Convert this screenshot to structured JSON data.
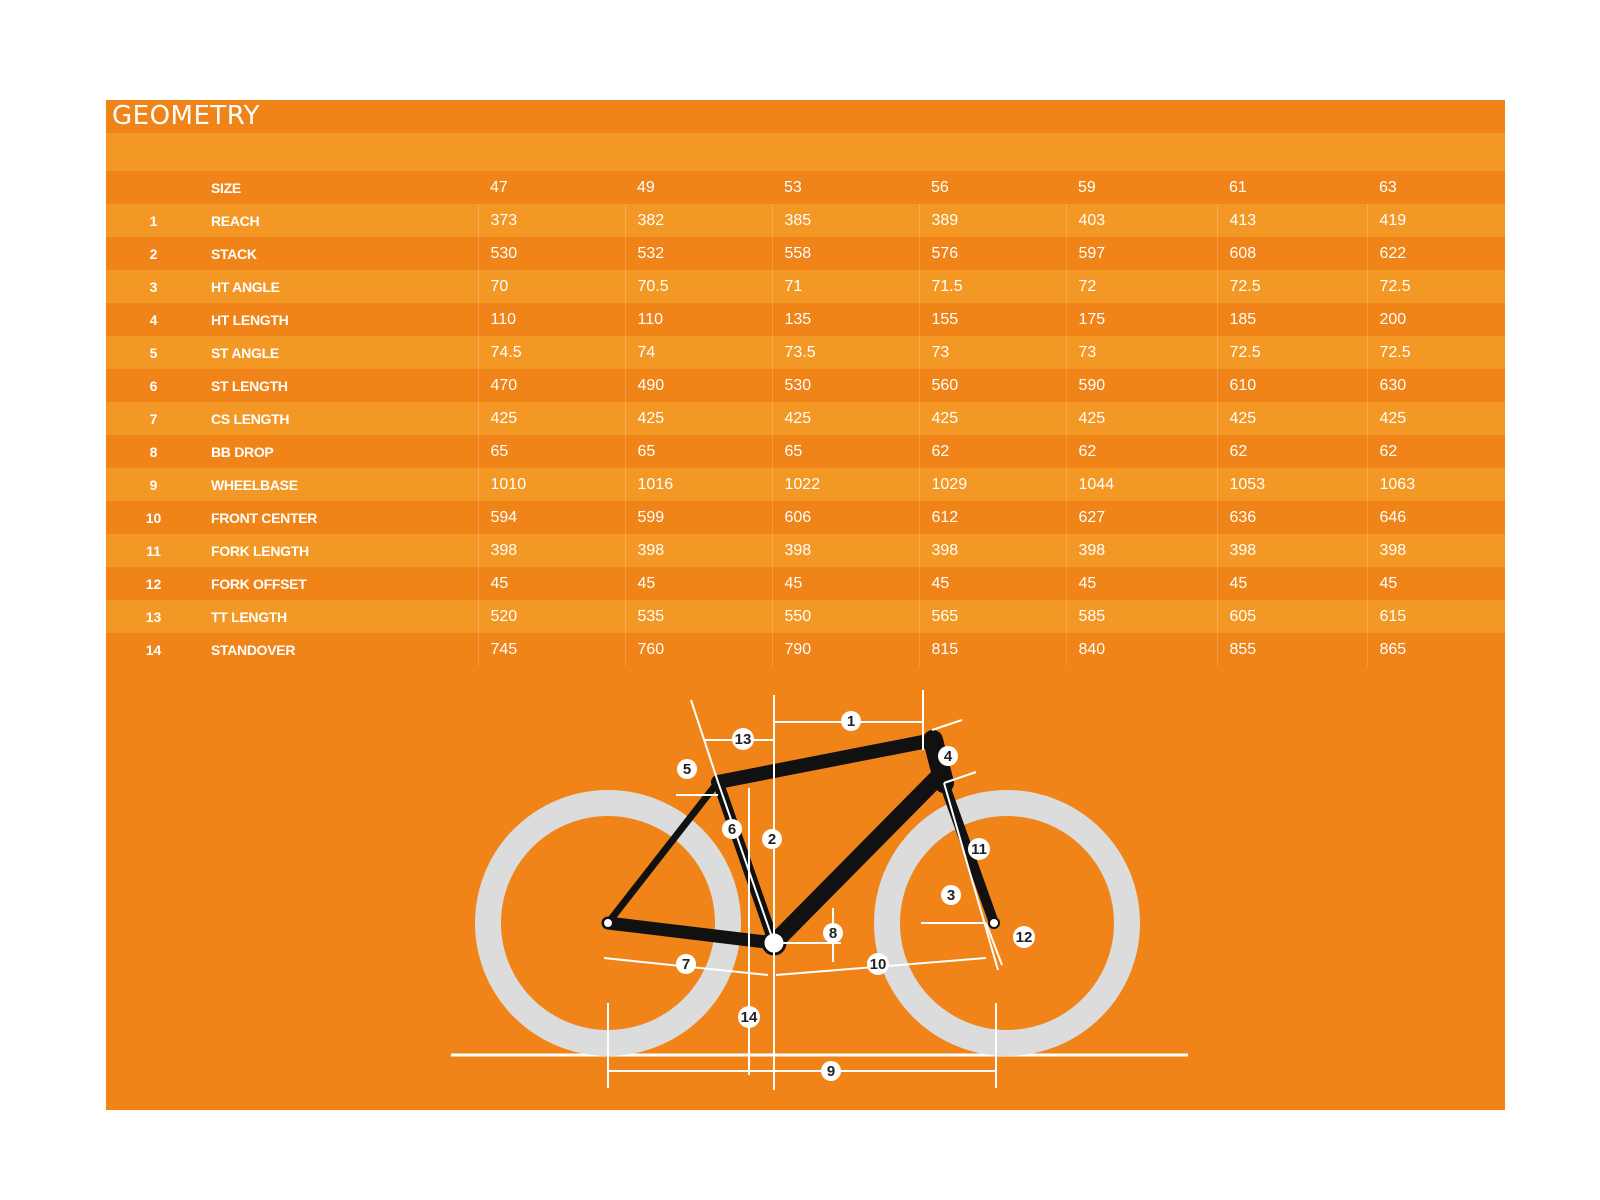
{
  "title": "GEOMETRY",
  "sizes_label": "SIZE",
  "sizes": [
    "47",
    "49",
    "53",
    "56",
    "59",
    "61",
    "63"
  ],
  "rows": [
    {
      "num": "1",
      "label": "REACH",
      "values": [
        "373",
        "382",
        "385",
        "389",
        "403",
        "413",
        "419"
      ]
    },
    {
      "num": "2",
      "label": "STACK",
      "values": [
        "530",
        "532",
        "558",
        "576",
        "597",
        "608",
        "622"
      ]
    },
    {
      "num": "3",
      "label": "HT ANGLE",
      "values": [
        "70",
        "70.5",
        "71",
        "71.5",
        "72",
        "72.5",
        "72.5"
      ]
    },
    {
      "num": "4",
      "label": "HT LENGTH",
      "values": [
        "110",
        "110",
        "135",
        "155",
        "175",
        "185",
        "200"
      ]
    },
    {
      "num": "5",
      "label": "ST ANGLE",
      "values": [
        "74.5",
        "74",
        "73.5",
        "73",
        "73",
        "72.5",
        "72.5"
      ]
    },
    {
      "num": "6",
      "label": "ST LENGTH",
      "values": [
        "470",
        "490",
        "530",
        "560",
        "590",
        "610",
        "630"
      ]
    },
    {
      "num": "7",
      "label": "CS LENGTH",
      "values": [
        "425",
        "425",
        "425",
        "425",
        "425",
        "425",
        "425"
      ]
    },
    {
      "num": "8",
      "label": "BB DROP",
      "values": [
        "65",
        "65",
        "65",
        "62",
        "62",
        "62",
        "62"
      ]
    },
    {
      "num": "9",
      "label": "WHEELBASE",
      "values": [
        "1010",
        "1016",
        "1022",
        "1029",
        "1044",
        "1053",
        "1063"
      ]
    },
    {
      "num": "10",
      "label": "FRONT CENTER",
      "values": [
        "594",
        "599",
        "606",
        "612",
        "627",
        "636",
        "646"
      ]
    },
    {
      "num": "11",
      "label": "FORK LENGTH",
      "values": [
        "398",
        "398",
        "398",
        "398",
        "398",
        "398",
        "398"
      ]
    },
    {
      "num": "12",
      "label": "FORK OFFSET",
      "values": [
        "45",
        "45",
        "45",
        "45",
        "45",
        "45",
        "45"
      ]
    },
    {
      "num": "13",
      "label": "TT LENGTH",
      "values": [
        "520",
        "535",
        "550",
        "565",
        "585",
        "605",
        "615"
      ]
    },
    {
      "num": "14",
      "label": "STANDOVER",
      "values": [
        "745",
        "760",
        "790",
        "815",
        "840",
        "855",
        "865"
      ]
    }
  ],
  "diagram_labels": [
    "1",
    "2",
    "3",
    "4",
    "5",
    "6",
    "7",
    "8",
    "9",
    "10",
    "11",
    "12",
    "13",
    "14"
  ],
  "colors": {
    "panel": "#f08418",
    "band_light": "#f49825",
    "tire": "#dcdcdc",
    "frame": "#111111",
    "text": "#ffffff"
  }
}
